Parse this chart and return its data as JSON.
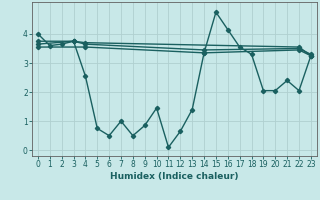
{
  "background_color": "#c8e8e8",
  "grid_color": "#b0d0d0",
  "line_color": "#1a6060",
  "line_width": 1.0,
  "marker": "D",
  "marker_size": 2.2,
  "xlabel": "Humidex (Indice chaleur)",
  "xlabel_fontsize": 6.5,
  "tick_fontsize": 5.5,
  "xlim": [
    -0.5,
    23.5
  ],
  "ylim": [
    -0.2,
    5.1
  ],
  "yticks": [
    0,
    1,
    2,
    3,
    4
  ],
  "xticks": [
    0,
    1,
    2,
    3,
    4,
    5,
    6,
    7,
    8,
    9,
    10,
    11,
    12,
    13,
    14,
    15,
    16,
    17,
    18,
    19,
    20,
    21,
    22,
    23
  ],
  "series": [
    {
      "x": [
        0,
        1,
        2,
        3,
        4,
        5,
        6,
        7,
        8,
        9,
        10,
        11,
        12,
        13,
        14,
        15,
        16,
        17,
        18,
        19,
        20,
        21,
        22,
        23
      ],
      "y": [
        4.0,
        3.6,
        3.65,
        3.75,
        2.55,
        0.75,
        0.5,
        1.0,
        0.5,
        0.85,
        1.45,
        0.1,
        0.65,
        1.4,
        3.35,
        4.75,
        4.15,
        3.55,
        3.3,
        2.05,
        2.05,
        2.4,
        2.05,
        3.25
      ]
    },
    {
      "x": [
        0,
        3,
        4,
        22,
        23
      ],
      "y": [
        3.75,
        3.75,
        3.7,
        3.55,
        3.25
      ]
    },
    {
      "x": [
        0,
        3,
        4,
        14,
        22,
        23
      ],
      "y": [
        3.65,
        3.75,
        3.65,
        3.45,
        3.5,
        3.3
      ]
    },
    {
      "x": [
        0,
        4,
        14,
        22,
        23
      ],
      "y": [
        3.55,
        3.55,
        3.35,
        3.45,
        3.25
      ]
    }
  ]
}
